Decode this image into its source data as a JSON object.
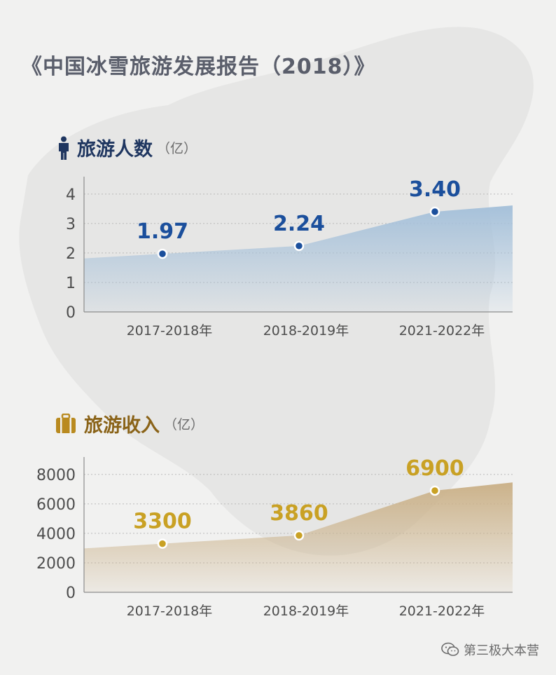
{
  "title": "《中国冰雪旅游发展报告（2018）》",
  "watermark": {
    "text": "第三极大本营",
    "icon": "wechat-icon"
  },
  "colors": {
    "people": "#1b4f9c",
    "people_fill": "#a6c1da",
    "income": "#c9a124",
    "income_fill": "#cbb28a",
    "axis_text": "#4d4d4d"
  },
  "people": {
    "name": "旅游人数",
    "unit": "（亿）",
    "icon": "person-icon"
  },
  "income": {
    "name": "旅游收入",
    "unit": "（亿）",
    "icon": "suitcase-icon"
  },
  "chart_data": [
    {
      "type": "area",
      "title": "旅游人数",
      "unit": "（亿）",
      "categories": [
        "2017-2018年",
        "2018-2019年",
        "2021-2022年"
      ],
      "values": [
        1.97,
        2.24,
        3.4
      ],
      "labels": [
        "1.97",
        "2.24",
        "3.40"
      ],
      "yticks": [
        0,
        1,
        2,
        3,
        4
      ],
      "ylim": [
        0,
        4.4
      ],
      "grid": true
    },
    {
      "type": "area",
      "title": "旅游收入",
      "unit": "（亿）",
      "categories": [
        "2017-2018年",
        "2018-2019年",
        "2021-2022年"
      ],
      "values": [
        3300,
        3860,
        6900
      ],
      "labels": [
        "3300",
        "3860",
        "6900"
      ],
      "yticks": [
        0,
        2000,
        4000,
        6000,
        8000
      ],
      "ylim": [
        0,
        8800
      ],
      "grid": true
    }
  ]
}
